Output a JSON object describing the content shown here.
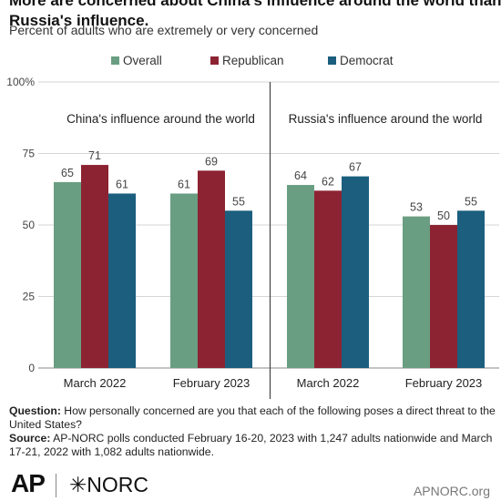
{
  "title_lines": [
    "More are concerned about China's influence around the world than",
    "Russia's influence."
  ],
  "subtitle": "Percent of adults who are extremely or very concerned",
  "chart_data": {
    "type": "bar",
    "legend_position": "top",
    "series": [
      {
        "name": "Overall",
        "color": "#6a9e82"
      },
      {
        "name": "Republican",
        "color": "#8c2332"
      },
      {
        "name": "Democrat",
        "color": "#1b5e7e"
      }
    ],
    "panels": [
      {
        "title": "China's influence around the world",
        "categories": [
          "March 2022",
          "February 2023"
        ],
        "values": [
          [
            65,
            71,
            61
          ],
          [
            61,
            69,
            55
          ]
        ]
      },
      {
        "title": "Russia's influence around the world",
        "categories": [
          "March 2022",
          "February 2023"
        ],
        "values": [
          [
            64,
            62,
            67
          ],
          [
            53,
            50,
            55
          ]
        ]
      }
    ],
    "y_ticks": [
      "0",
      "25",
      "50",
      "75",
      "100%"
    ],
    "ylim": [
      0,
      100
    ],
    "grid": true
  },
  "footer": {
    "question_label": "Question:",
    "question_text": "How personally concerned are you that each of the following poses a direct threat to the United States?",
    "source_label": "Source:",
    "source_text": "AP-NORC polls conducted February 16-20, 2023 with 1,247 adults nationwide and March 17-21, 2022 with 1,082 adults nationwide."
  },
  "logos": {
    "ap": "AP",
    "norc": "NORC",
    "site": "APNORC.org"
  }
}
